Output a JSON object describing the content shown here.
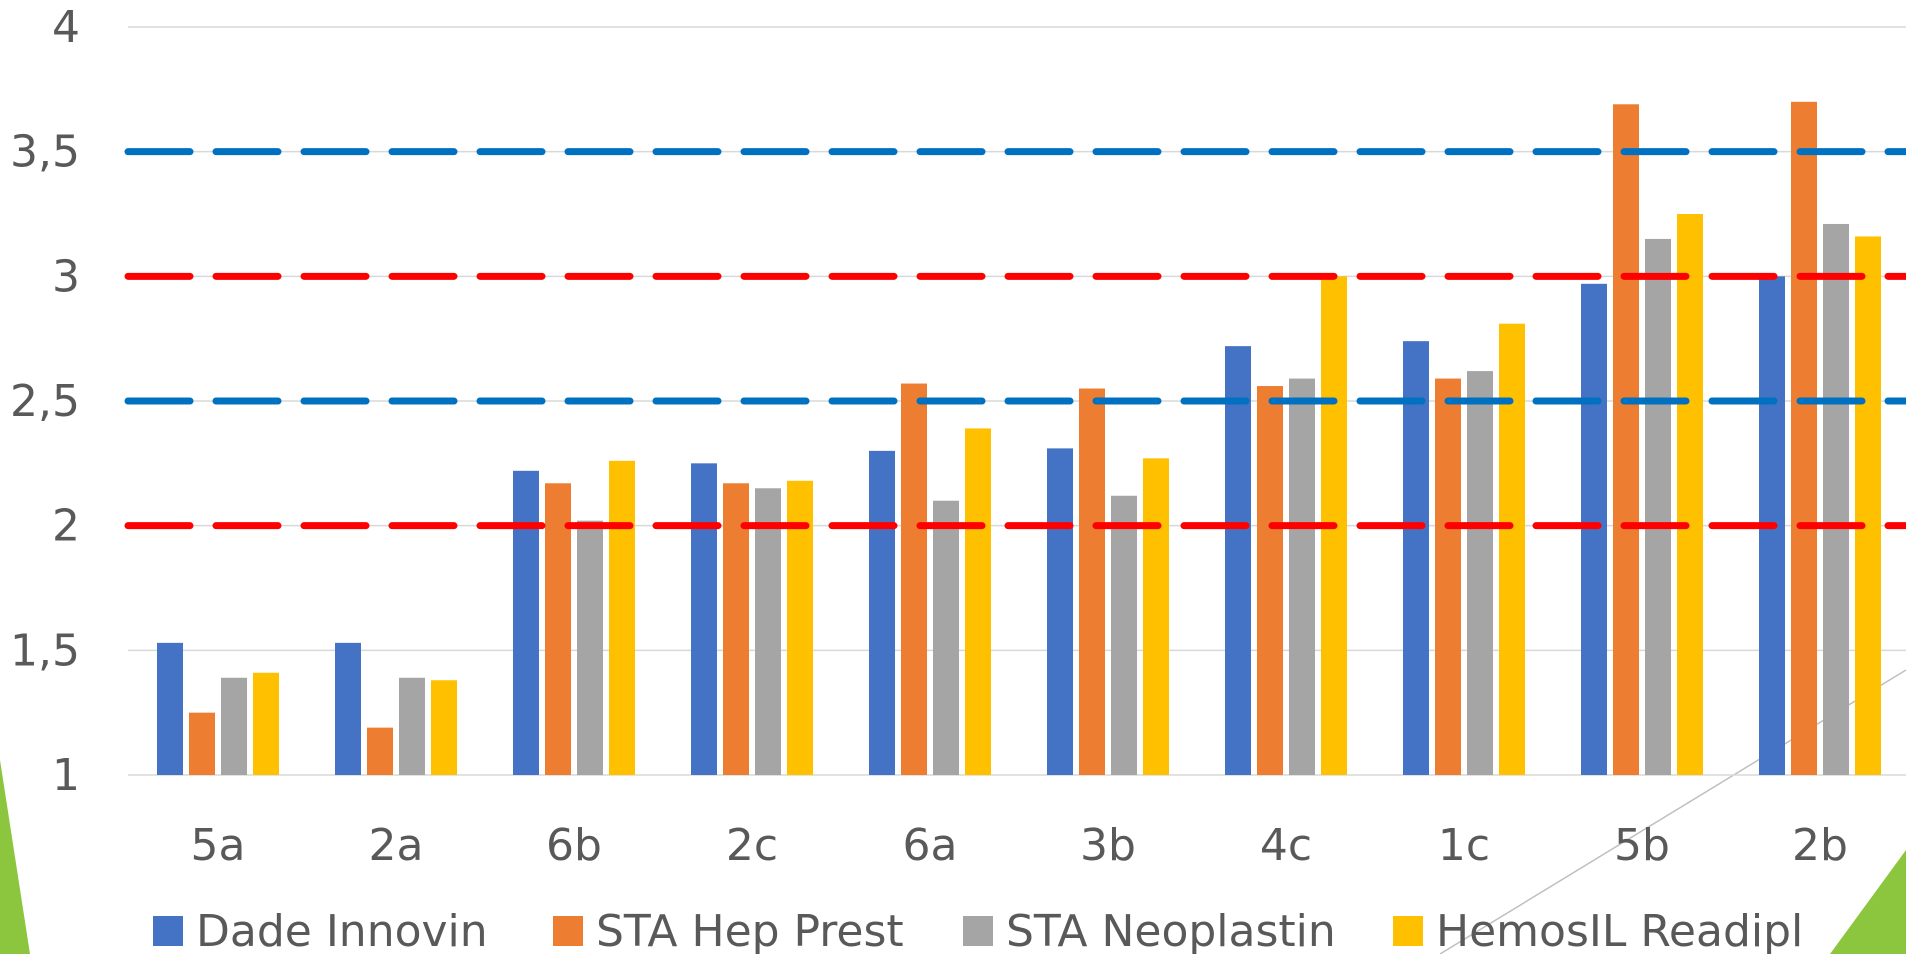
{
  "chart_data": {
    "type": "bar",
    "title": "",
    "xlabel": "",
    "ylabel": "",
    "ylim": [
      1,
      4
    ],
    "yticks": [
      "1",
      "1,5",
      "2",
      "2,5",
      "3",
      "3,5",
      "4"
    ],
    "grid": true,
    "legend_position": "bottom",
    "categories": [
      "5a",
      "2a",
      "6b",
      "2c",
      "6a",
      "3b",
      "4c",
      "1c",
      "5b",
      "2b"
    ],
    "series": [
      {
        "name": "Dade Innovin",
        "color": "#4472C4",
        "values": [
          1.53,
          1.53,
          2.22,
          2.25,
          2.3,
          2.31,
          2.72,
          2.74,
          2.97,
          3.0
        ]
      },
      {
        "name": "STA Hep Prest",
        "color": "#ED7D31",
        "values": [
          1.25,
          1.19,
          2.17,
          2.17,
          2.57,
          2.55,
          2.56,
          2.59,
          3.69,
          3.7
        ]
      },
      {
        "name": "STA Neoplastin",
        "color": "#A5A5A5",
        "values": [
          1.39,
          1.39,
          2.02,
          2.15,
          2.1,
          2.12,
          2.59,
          2.62,
          3.15,
          3.21
        ]
      },
      {
        "name": "HemosIL Readipl",
        "color": "#FFC000",
        "values": [
          1.41,
          1.38,
          2.26,
          2.18,
          2.39,
          2.27,
          3.0,
          2.81,
          3.25,
          3.16
        ]
      }
    ],
    "reference_lines": [
      {
        "value": 3.5,
        "color": "#0070C0"
      },
      {
        "value": 2.5,
        "color": "#0070C0"
      },
      {
        "value": 3.0,
        "color": "#FF0000"
      },
      {
        "value": 2.0,
        "color": "#FF0000"
      }
    ]
  }
}
